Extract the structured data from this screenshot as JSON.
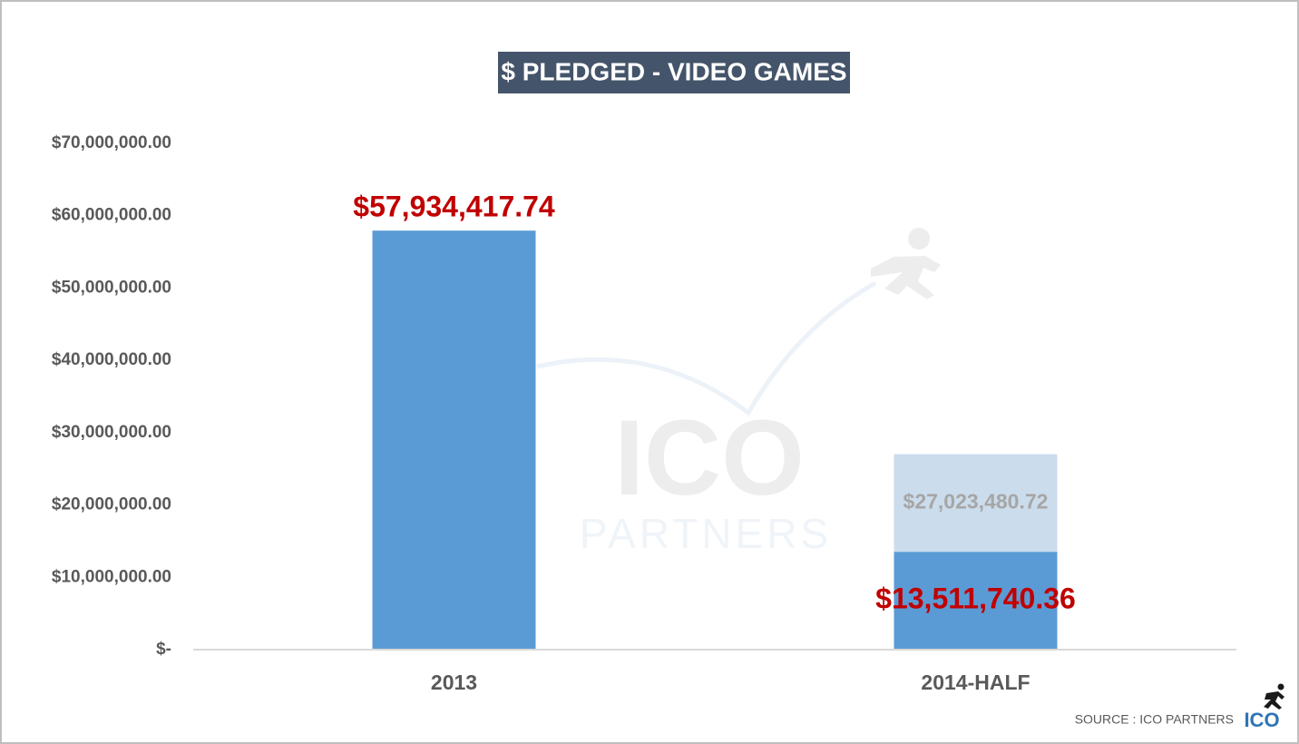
{
  "chart_data": {
    "type": "bar",
    "title": "$ PLEDGED - VIDEO GAMES",
    "categories": [
      "2013",
      "2014-HALF"
    ],
    "series": [
      {
        "color": "#5b9bd5",
        "label_color": "#c00000",
        "values": [
          57934417.74,
          13511740.36
        ],
        "value_labels": [
          "$57,934,417.74",
          "$13,511,740.36"
        ]
      },
      {
        "color": "#cbdcec",
        "label_color": "#a6a6a6",
        "values": [
          null,
          27023480.72
        ],
        "value_labels": [
          null,
          "$27,023,480.72"
        ]
      }
    ],
    "ylim": [
      0,
      70000000
    ],
    "yticks": [
      {
        "value": 0,
        "label": "$-"
      },
      {
        "value": 10000000,
        "label": "$10,000,000.00"
      },
      {
        "value": 20000000,
        "label": "$20,000,000.00"
      },
      {
        "value": 30000000,
        "label": "$30,000,000.00"
      },
      {
        "value": 40000000,
        "label": "$40,000,000.00"
      },
      {
        "value": 50000000,
        "label": "$50,000,000.00"
      },
      {
        "value": 60000000,
        "label": "$60,000,000.00"
      },
      {
        "value": 70000000,
        "label": "$70,000,000.00"
      }
    ],
    "grid": false,
    "watermark": [
      "ICO",
      "PARTNERS"
    ],
    "source": "SOURCE : ICO PARTNERS",
    "logo": "ICO"
  }
}
